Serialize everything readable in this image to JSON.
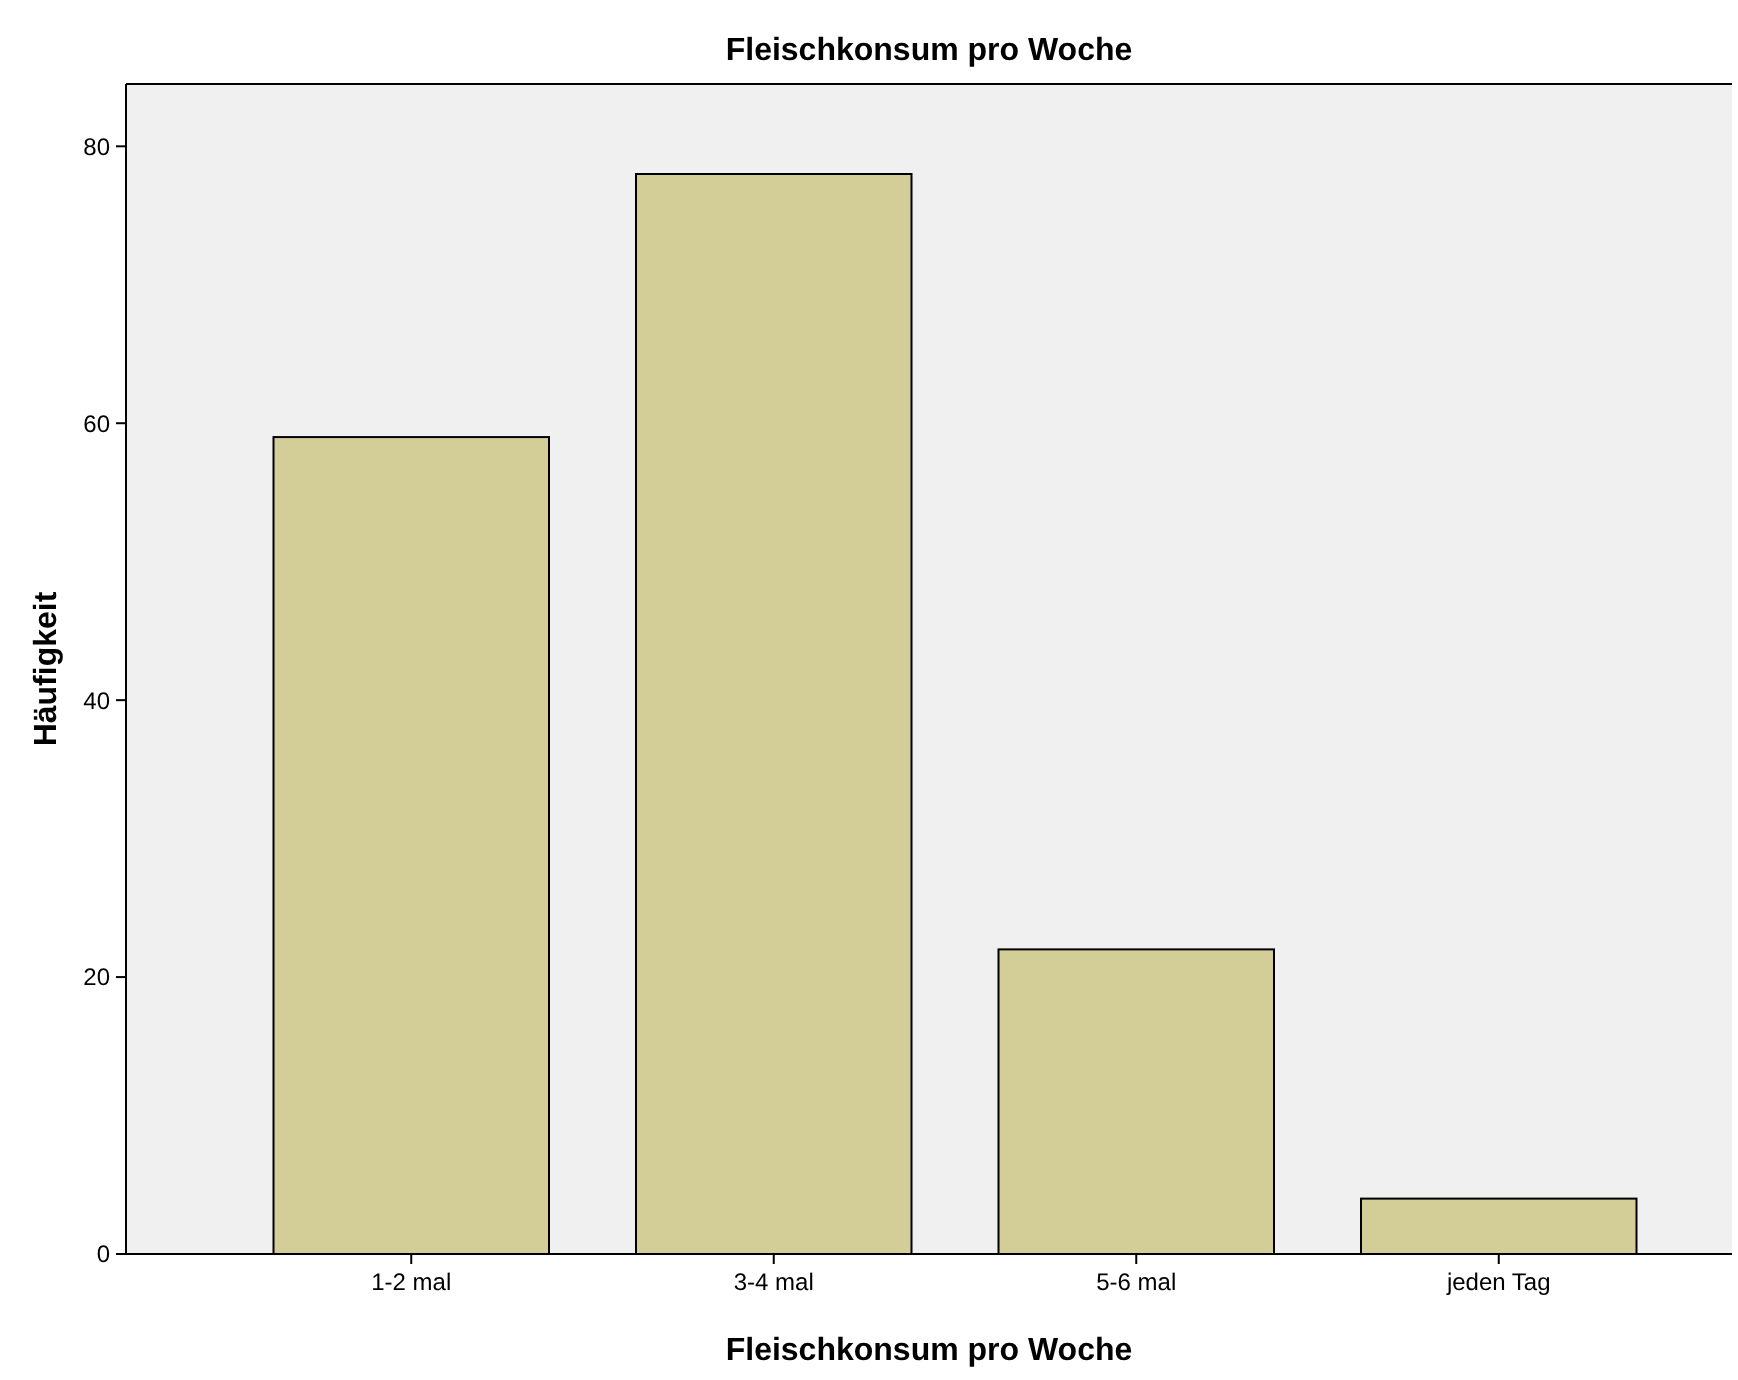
{
  "chart_data": {
    "type": "bar",
    "title": "Fleischkonsum pro Woche",
    "xlabel": "Fleischkonsum pro Woche",
    "ylabel": "Häufigkeit",
    "categories": [
      "1-2 mal",
      "3-4 mal",
      "5-6 mal",
      "jeden Tag"
    ],
    "values": [
      59,
      78,
      22,
      4
    ],
    "color": "#d3ce97",
    "ylim": [
      0,
      84.5
    ],
    "yticks": [
      0,
      20,
      40,
      60,
      80
    ]
  }
}
